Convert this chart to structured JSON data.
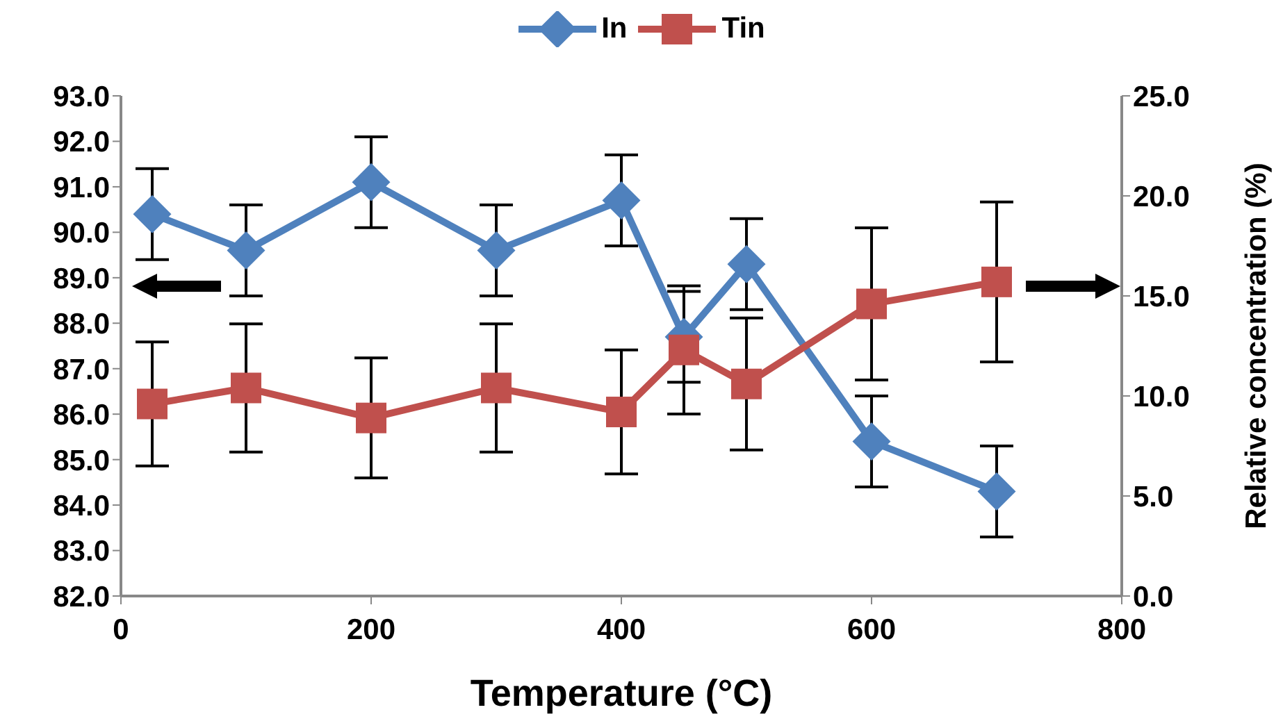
{
  "chart_data": {
    "type": "line",
    "xlabel": "Temperature (°C)",
    "y2label": "Relative concentration (%)",
    "x": [
      25,
      100,
      200,
      300,
      400,
      450,
      500,
      600,
      700
    ],
    "series": [
      {
        "name": "In",
        "color": "#4f81bd",
        "marker": "diamond",
        "values": [
          90.4,
          89.6,
          91.1,
          89.6,
          90.7,
          87.7,
          89.3,
          85.4,
          84.3
        ],
        "errors": [
          1.0,
          1.0,
          1.0,
          1.0,
          1.0,
          1.0,
          1.0,
          1.0,
          1.0
        ]
      },
      {
        "name": "Tin",
        "color": "#c0504d",
        "marker": "square",
        "axis": "y2",
        "values": [
          9.6,
          10.4,
          8.9,
          10.4,
          9.2,
          12.3,
          10.6,
          14.6,
          15.7
        ],
        "errors": [
          3.1,
          3.2,
          3.0,
          3.2,
          3.1,
          3.2,
          3.3,
          3.8,
          4.0
        ]
      }
    ],
    "xlim": [
      0,
      800
    ],
    "xticks": [
      0,
      200,
      400,
      600,
      800
    ],
    "ylim": [
      82,
      93
    ],
    "yticks": [
      {
        "value": 82,
        "label": "82.0"
      },
      {
        "value": 83,
        "label": "83.0"
      },
      {
        "value": 84,
        "label": "84.0"
      },
      {
        "value": 85,
        "label": "85.0"
      },
      {
        "value": 86,
        "label": "86.0"
      },
      {
        "value": 87,
        "label": "87.0"
      },
      {
        "value": 88,
        "label": "88.0"
      },
      {
        "value": 89,
        "label": "89.0"
      },
      {
        "value": 90,
        "label": "90.0"
      },
      {
        "value": 91,
        "label": "91.0"
      },
      {
        "value": 92,
        "label": "92.0"
      },
      {
        "value": 93,
        "label": "93.0"
      }
    ],
    "y2lim": [
      0,
      25
    ],
    "y2ticks": [
      {
        "value": 0,
        "label": "0.0"
      },
      {
        "value": 5,
        "label": "5.0"
      },
      {
        "value": 10,
        "label": "10.0"
      },
      {
        "value": 15,
        "label": "15.0"
      },
      {
        "value": 20,
        "label": "20.0"
      },
      {
        "value": 25,
        "label": "25.0"
      }
    ],
    "grid": false,
    "legend": "top"
  }
}
